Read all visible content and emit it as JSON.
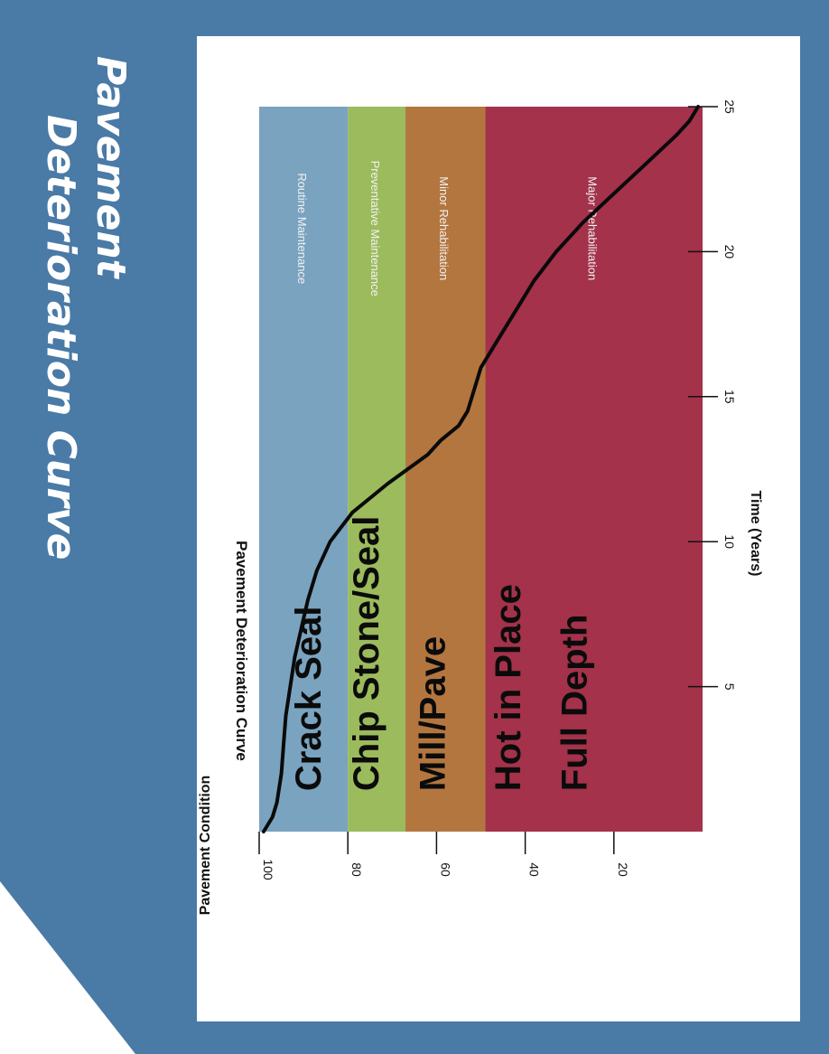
{
  "slide": {
    "title_line1": "Pavement",
    "title_line2": "Deterioration Curve",
    "colors": {
      "background": "#4a7aa6",
      "card": "#ffffff"
    }
  },
  "chart_data": {
    "type": "line",
    "title": "Pavement Deterioration Curve",
    "xlabel": "Time (Years)",
    "ylabel": "Pavement Condition",
    "xlim": [
      0,
      25
    ],
    "ylim": [
      0,
      100
    ],
    "x_ticks": [
      5,
      10,
      15,
      20,
      25
    ],
    "y_ticks": [
      100,
      80,
      60,
      40,
      20
    ],
    "grid": false,
    "series": [
      {
        "x": [
          0,
          0.5,
          1,
          2,
          3,
          4,
          5,
          6,
          7,
          8,
          9,
          10,
          11,
          12,
          13,
          13.5,
          14,
          14.5,
          15,
          15.5,
          16,
          17,
          18,
          19,
          20,
          21,
          22,
          23,
          24,
          24.5,
          25
        ],
        "y": [
          99,
          97,
          96,
          95,
          94.5,
          94,
          93,
          92,
          90.5,
          89,
          87,
          84,
          79,
          71,
          62,
          59,
          55,
          53,
          52,
          51,
          50,
          46,
          42,
          38,
          33,
          27,
          20,
          13,
          6,
          3,
          1
        ]
      }
    ],
    "zones": [
      {
        "label": "Routine Maintenance",
        "from": 80,
        "to": 100,
        "color": "#7aa3bf"
      },
      {
        "label": "Preventative Maintenance",
        "from": 67,
        "to": 80,
        "color": "#9cbb5d"
      },
      {
        "label": "Minor Rehabilitation",
        "from": 49,
        "to": 67,
        "color": "#b3763f"
      },
      {
        "label": "Major Rehabilitation",
        "from": 0,
        "to": 49,
        "color": "#a3324a"
      }
    ],
    "annotations": [
      {
        "text": "Crack Seal",
        "at_condition": 89
      },
      {
        "text": "Chip Stone/Seal",
        "at_condition": 76
      },
      {
        "text": "Mill/Pave",
        "at_condition": 61
      },
      {
        "text": "Hot in Place",
        "at_condition": 44
      },
      {
        "text": "Full Depth",
        "at_condition": 29
      }
    ]
  }
}
